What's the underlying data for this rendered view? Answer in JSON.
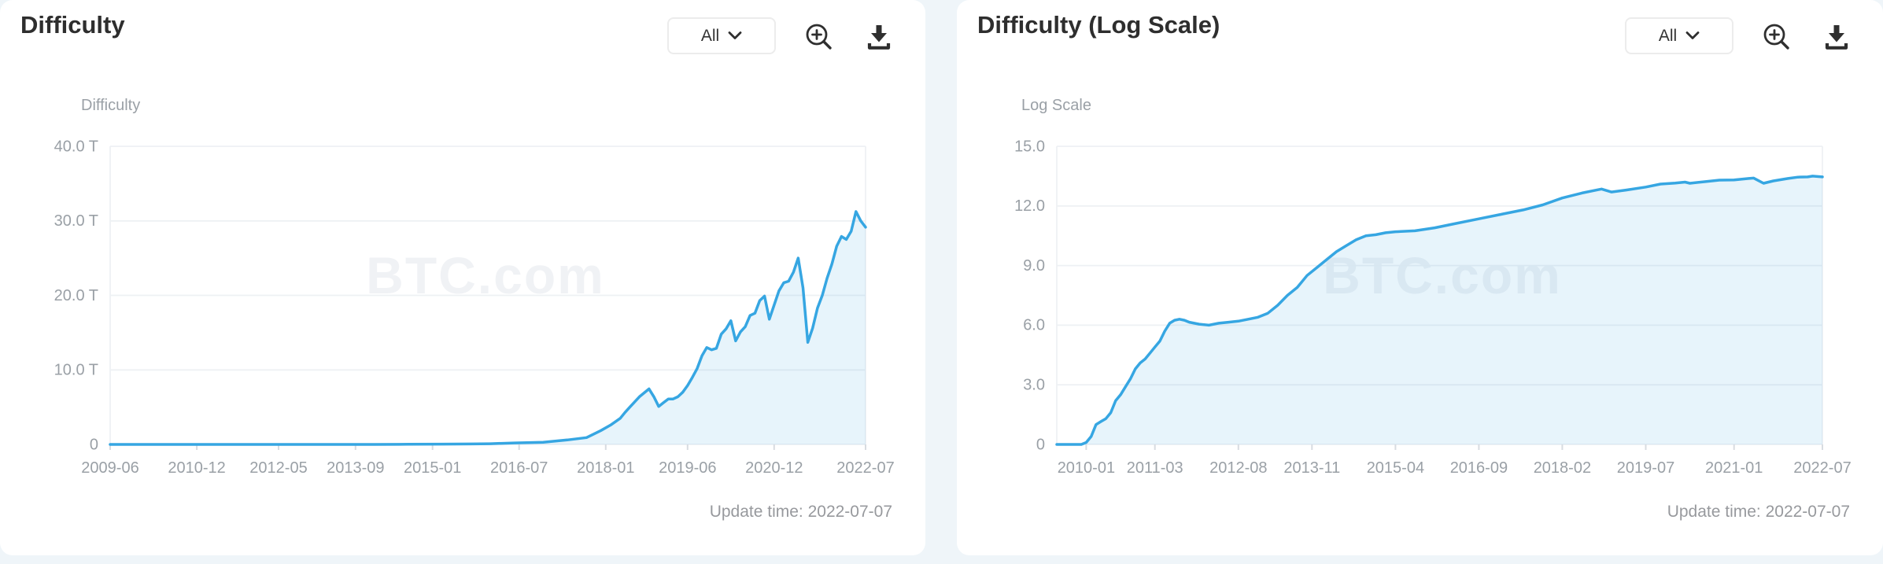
{
  "watermark": "BTC.com",
  "colors": {
    "accent_line": "#36a6e2",
    "area_fill": "rgba(54,166,226,0.12)",
    "page_background": "#eff5f9",
    "card_background": "#ffffff",
    "muted_text": "#9aa0a6",
    "title_text": "#2e2e2e"
  },
  "cards": [
    {
      "range_label": "All",
      "update_time": "Update time: 2022-07-07",
      "icons": [
        "chevron-down",
        "zoom-in",
        "download"
      ]
    },
    {
      "range_label": "All",
      "update_time": "Update time: 2022-07-07",
      "icons": [
        "chevron-down",
        "zoom-in",
        "download"
      ]
    }
  ],
  "chart_data": [
    {
      "type": "area",
      "title": "Difficulty",
      "ylabel": "Difficulty",
      "xlabel": "",
      "legend": null,
      "grid": true,
      "ylim": [
        0,
        40
      ],
      "y_unit": "T (difficulty, trillions)",
      "y_ticks": [
        {
          "value": 0,
          "label": "0"
        },
        {
          "value": 10,
          "label": "10.0 T"
        },
        {
          "value": 20,
          "label": "20.0 T"
        },
        {
          "value": 30,
          "label": "30.0 T"
        },
        {
          "value": 40,
          "label": "40.0 T"
        }
      ],
      "x_range": [
        "2009-06",
        "2022-07"
      ],
      "x_tick_labels": [
        "2009-06",
        "2010-12",
        "2012-05",
        "2013-09",
        "2015-01",
        "2016-07",
        "2018-01",
        "2019-06",
        "2020-12",
        "2022-07"
      ],
      "points": [
        [
          "2009-06",
          0
        ],
        [
          "2010-06",
          0
        ],
        [
          "2011-06",
          0
        ],
        [
          "2012-06",
          0
        ],
        [
          "2013-06",
          0.0002
        ],
        [
          "2014-01",
          0.0015
        ],
        [
          "2014-08",
          0.02
        ],
        [
          "2015-03",
          0.047
        ],
        [
          "2015-09",
          0.06
        ],
        [
          "2016-01",
          0.1
        ],
        [
          "2016-06",
          0.2
        ],
        [
          "2016-12",
          0.3
        ],
        [
          "2017-05",
          0.6
        ],
        [
          "2017-09",
          0.92
        ],
        [
          "2017-12",
          1.87
        ],
        [
          "2018-02",
          2.6
        ],
        [
          "2018-04",
          3.5
        ],
        [
          "2018-05",
          4.3
        ],
        [
          "2018-06",
          5.0
        ],
        [
          "2018-08",
          6.4
        ],
        [
          "2018-10",
          7.45
        ],
        [
          "2018-11",
          6.4
        ],
        [
          "2018-12",
          5.1
        ],
        [
          "2019-01",
          5.6
        ],
        [
          "2019-02",
          6.1
        ],
        [
          "2019-03",
          6.1
        ],
        [
          "2019-04",
          6.4
        ],
        [
          "2019-05",
          7.0
        ],
        [
          "2019-06",
          7.9
        ],
        [
          "2019-07",
          9.0
        ],
        [
          "2019-08",
          10.2
        ],
        [
          "2019-09",
          11.9
        ],
        [
          "2019-10",
          13.0
        ],
        [
          "2019-11",
          12.7
        ],
        [
          "2019-12",
          12.9
        ],
        [
          "2020-01",
          14.8
        ],
        [
          "2020-02",
          15.5
        ],
        [
          "2020-03",
          16.6
        ],
        [
          "2020-04",
          13.9
        ],
        [
          "2020-05",
          15.1
        ],
        [
          "2020-06",
          15.8
        ],
        [
          "2020-07",
          17.3
        ],
        [
          "2020-08",
          17.6
        ],
        [
          "2020-09",
          19.3
        ],
        [
          "2020-10",
          19.9
        ],
        [
          "2020-11",
          16.8
        ],
        [
          "2020-12",
          18.7
        ],
        [
          "2021-01",
          20.6
        ],
        [
          "2021-02",
          21.7
        ],
        [
          "2021-03",
          21.9
        ],
        [
          "2021-04",
          23.1
        ],
        [
          "2021-05",
          25.0
        ],
        [
          "2021-06",
          21.0
        ],
        [
          "2021-07",
          13.7
        ],
        [
          "2021-08",
          15.6
        ],
        [
          "2021-09",
          18.3
        ],
        [
          "2021-10",
          20.0
        ],
        [
          "2021-11",
          22.3
        ],
        [
          "2021-12",
          24.2
        ],
        [
          "2022-01",
          26.6
        ],
        [
          "2022-02",
          27.9
        ],
        [
          "2022-03",
          27.5
        ],
        [
          "2022-04",
          28.6
        ],
        [
          "2022-05",
          31.25
        ],
        [
          "2022-06",
          30.0
        ],
        [
          "2022-07",
          29.15
        ]
      ]
    },
    {
      "type": "area",
      "title": "Difficulty (Log Scale)",
      "ylabel": "Log Scale",
      "xlabel": "",
      "legend": null,
      "grid": true,
      "ylim": [
        0,
        15
      ],
      "y_unit": "log10(difficulty)",
      "y_ticks": [
        {
          "value": 0,
          "label": "0"
        },
        {
          "value": 3.0,
          "label": "3.0"
        },
        {
          "value": 6.0,
          "label": "6.0"
        },
        {
          "value": 9.0,
          "label": "9.0"
        },
        {
          "value": 12.0,
          "label": "12.0"
        },
        {
          "value": 15.0,
          "label": "15.0"
        }
      ],
      "x_range": [
        "2009-07",
        "2022-07"
      ],
      "x_tick_labels": [
        "2010-01",
        "2011-03",
        "2012-08",
        "2013-11",
        "2015-04",
        "2016-09",
        "2018-02",
        "2019-07",
        "2021-01",
        "2022-07"
      ],
      "points": [
        [
          "2009-07",
          0
        ],
        [
          "2009-12",
          0
        ],
        [
          "2010-01",
          0.1
        ],
        [
          "2010-02",
          0.4
        ],
        [
          "2010-03",
          1.0
        ],
        [
          "2010-04",
          1.15
        ],
        [
          "2010-05",
          1.3
        ],
        [
          "2010-06",
          1.6
        ],
        [
          "2010-07",
          2.2
        ],
        [
          "2010-08",
          2.5
        ],
        [
          "2010-09",
          2.9
        ],
        [
          "2010-10",
          3.3
        ],
        [
          "2010-11",
          3.8
        ],
        [
          "2010-12",
          4.1
        ],
        [
          "2011-01",
          4.3
        ],
        [
          "2011-02",
          4.6
        ],
        [
          "2011-03",
          4.9
        ],
        [
          "2011-04",
          5.2
        ],
        [
          "2011-05",
          5.7
        ],
        [
          "2011-06",
          6.1
        ],
        [
          "2011-07",
          6.25
        ],
        [
          "2011-08",
          6.3
        ],
        [
          "2011-09",
          6.25
        ],
        [
          "2011-10",
          6.15
        ],
        [
          "2011-12",
          6.05
        ],
        [
          "2012-02",
          6.0
        ],
        [
          "2012-04",
          6.1
        ],
        [
          "2012-06",
          6.15
        ],
        [
          "2012-08",
          6.2
        ],
        [
          "2012-10",
          6.3
        ],
        [
          "2012-12",
          6.4
        ],
        [
          "2013-02",
          6.6
        ],
        [
          "2013-04",
          7.0
        ],
        [
          "2013-06",
          7.5
        ],
        [
          "2013-08",
          7.9
        ],
        [
          "2013-10",
          8.5
        ],
        [
          "2013-12",
          8.9
        ],
        [
          "2014-02",
          9.3
        ],
        [
          "2014-04",
          9.7
        ],
        [
          "2014-06",
          10.0
        ],
        [
          "2014-08",
          10.3
        ],
        [
          "2014-10",
          10.5
        ],
        [
          "2014-12",
          10.55
        ],
        [
          "2015-02",
          10.65
        ],
        [
          "2015-04",
          10.7
        ],
        [
          "2015-08",
          10.75
        ],
        [
          "2015-12",
          10.9
        ],
        [
          "2016-04",
          11.1
        ],
        [
          "2016-09",
          11.35
        ],
        [
          "2017-02",
          11.6
        ],
        [
          "2017-06",
          11.8
        ],
        [
          "2017-10",
          12.05
        ],
        [
          "2018-02",
          12.4
        ],
        [
          "2018-06",
          12.65
        ],
        [
          "2018-10",
          12.85
        ],
        [
          "2018-12",
          12.7
        ],
        [
          "2019-03",
          12.8
        ],
        [
          "2019-07",
          12.95
        ],
        [
          "2019-10",
          13.1
        ],
        [
          "2020-01",
          13.15
        ],
        [
          "2020-03",
          13.2
        ],
        [
          "2020-04",
          13.14
        ],
        [
          "2020-07",
          13.22
        ],
        [
          "2020-10",
          13.3
        ],
        [
          "2021-01",
          13.31
        ],
        [
          "2021-04",
          13.38
        ],
        [
          "2021-05",
          13.4
        ],
        [
          "2021-07",
          13.14
        ],
        [
          "2021-09",
          13.26
        ],
        [
          "2021-12",
          13.38
        ],
        [
          "2022-02",
          13.45
        ],
        [
          "2022-04",
          13.46
        ],
        [
          "2022-05",
          13.5
        ],
        [
          "2022-06",
          13.48
        ],
        [
          "2022-07",
          13.46
        ]
      ]
    }
  ]
}
